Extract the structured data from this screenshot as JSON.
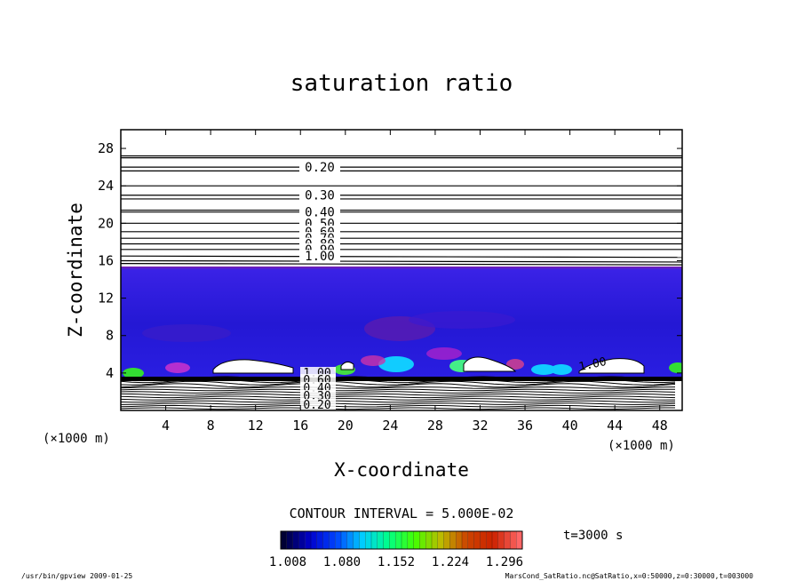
{
  "chart_data": {
    "type": "contour",
    "title": "saturation ratio",
    "xlabel": "X-coordinate",
    "ylabel": "Z-coordinate",
    "x_unit_label": "(×1000 m)",
    "z_unit_label": "(×1000 m)",
    "xlim": [
      0,
      50
    ],
    "ylim": [
      0,
      30
    ],
    "x_ticks": [
      4,
      8,
      12,
      16,
      20,
      24,
      28,
      32,
      36,
      40,
      44,
      48
    ],
    "y_ticks": [
      4,
      8,
      12,
      16,
      20,
      24,
      28
    ],
    "upper_contours": [
      {
        "z": 27.2,
        "label": ""
      },
      {
        "z": 25.6,
        "label": ""
      },
      {
        "z": 24.0,
        "label": ""
      },
      {
        "z": 22.6,
        "label": ""
      },
      {
        "z": 21.4,
        "label": ""
      },
      {
        "z": 27.0,
        "label": ""
      },
      {
        "z": 26.0,
        "label": "0.20"
      },
      {
        "z": 23.0,
        "label": "0.30"
      },
      {
        "z": 21.2,
        "label": "0.40"
      },
      {
        "z": 20.0,
        "label": "0.50"
      },
      {
        "z": 19.1,
        "label": "0.60"
      },
      {
        "z": 18.4,
        "label": "0.70"
      },
      {
        "z": 17.8,
        "label": "0.80"
      },
      {
        "z": 17.2,
        "label": "0.90"
      },
      {
        "z": 16.5,
        "label": "1.00"
      },
      {
        "z": 16.0,
        "label": ""
      },
      {
        "z": 15.7,
        "label": ""
      }
    ],
    "lower_contour_labels": [
      "1.00",
      "0.60",
      "0.40",
      "0.30",
      "0.20"
    ],
    "inline_label_1_00": "1.00",
    "contour_interval_text": "CONTOUR INTERVAL = 5.000E-02",
    "colorbar": {
      "ticks": [
        "1.008",
        "1.080",
        "1.152",
        "1.224",
        "1.296"
      ],
      "min": 1.008,
      "max": 1.33,
      "colors": [
        "#000033",
        "#0000cc",
        "#0044ff",
        "#00ccff",
        "#00ff88",
        "#44ff00",
        "#bbbb00",
        "#cc4400",
        "#cc2200",
        "#ff6666"
      ]
    },
    "time_label": "t=3000 s"
  },
  "footer": {
    "left": "/usr/bin/gpview   2009-01-25",
    "right": "MarsCond_SatRatio.nc@SatRatio,x=0:50000,z=0:30000,t=003000"
  },
  "colors": {
    "background": "#ffffff",
    "field_deep": "#1a10c8",
    "field_mid": "#2a1ee0",
    "accent_purple": "#8a1ea0"
  }
}
